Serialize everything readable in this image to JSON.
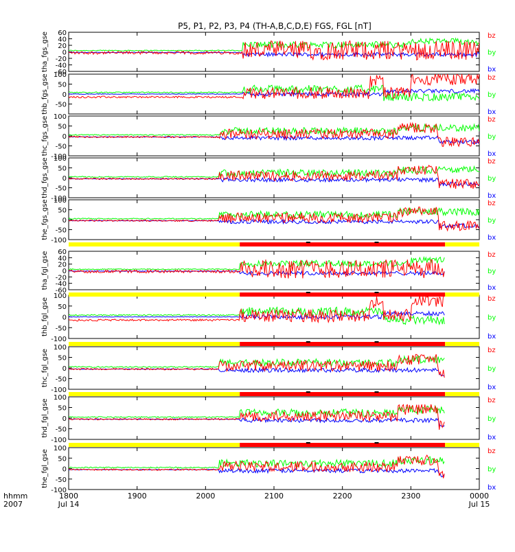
{
  "title": "P5, P1, P2, P3, P4 (TH-A,B,C,D,E) FGS, FGL [nT]",
  "xaxis": {
    "row_labels": [
      "hhmm",
      "2007"
    ],
    "ticks": [
      "1800",
      "1900",
      "2000",
      "2100",
      "2200",
      "2300",
      "0000"
    ],
    "date_labels": [
      "Jul 14",
      "Jul 15"
    ],
    "range": [
      1800,
      2400
    ]
  },
  "colors": {
    "bx": "#0000ff",
    "by": "#00ff00",
    "bz": "#ff0000",
    "mode_fast": "#ff0000",
    "mode_slow": "#ffff00"
  },
  "chart_data": [
    {
      "type": "line",
      "ylabel": "tha_fgs_gse",
      "ylim": [
        -60,
        60
      ],
      "yticks": [
        "60",
        "40",
        "20",
        "0",
        "-20",
        "-40",
        "-60"
      ],
      "series": [
        {
          "name": "bz"
        },
        {
          "name": "by"
        },
        {
          "name": "bx"
        }
      ]
    },
    {
      "type": "line",
      "ylabel": "thb_fgs_gse",
      "ylim": [
        -100,
        100
      ],
      "yticks": [
        "100",
        "50",
        "0",
        "-50"
      ],
      "series": [
        {
          "name": "bz"
        },
        {
          "name": "by"
        },
        {
          "name": "bx"
        }
      ]
    },
    {
      "type": "line",
      "ylabel": "thc_fgs_gse",
      "ylim": [
        -100,
        100
      ],
      "yticks": [
        "100",
        "50",
        "0",
        "-50",
        "-100"
      ],
      "series": [
        {
          "name": "bz"
        },
        {
          "name": "by"
        },
        {
          "name": "bx"
        }
      ]
    },
    {
      "type": "line",
      "ylabel": "thd_fgs_gse",
      "ylim": [
        -100,
        100
      ],
      "yticks": [
        "100",
        "50",
        "0",
        "-50",
        "-100"
      ],
      "series": [
        {
          "name": "bz"
        },
        {
          "name": "by"
        },
        {
          "name": "bx"
        }
      ]
    },
    {
      "type": "line",
      "ylabel": "the_fgs_gse",
      "ylim": [
        -100,
        100
      ],
      "yticks": [
        "100",
        "50",
        "0",
        "-50",
        "-100"
      ],
      "series": [
        {
          "name": "bz"
        },
        {
          "name": "by"
        },
        {
          "name": "bx"
        }
      ]
    },
    {
      "type": "line",
      "ylabel": "tha_fgl_gse",
      "ylim": [
        -60,
        60
      ],
      "yticks": [
        "60",
        "40",
        "20",
        "0",
        "-20",
        "-40",
        "-60"
      ],
      "series": [
        {
          "name": "bz"
        },
        {
          "name": "by"
        },
        {
          "name": "bx"
        }
      ]
    },
    {
      "type": "line",
      "ylabel": "thb_fgl_gse",
      "ylim": [
        -100,
        100
      ],
      "yticks": [
        "100",
        "50",
        "0",
        "-50",
        "-100"
      ],
      "series": [
        {
          "name": "bz"
        },
        {
          "name": "by"
        },
        {
          "name": "bx"
        }
      ]
    },
    {
      "type": "line",
      "ylabel": "thc_fgl_gse",
      "ylim": [
        -100,
        100
      ],
      "yticks": [
        "100",
        "50",
        "0",
        "-50",
        "-100"
      ],
      "series": [
        {
          "name": "bz"
        },
        {
          "name": "by"
        },
        {
          "name": "bx"
        }
      ]
    },
    {
      "type": "line",
      "ylabel": "thd_fgl_gse",
      "ylim": [
        -100,
        100
      ],
      "yticks": [
        "100",
        "50",
        "0",
        "-50",
        "-100"
      ],
      "series": [
        {
          "name": "bz"
        },
        {
          "name": "by"
        },
        {
          "name": "bx"
        }
      ]
    },
    {
      "type": "line",
      "ylabel": "the_fgl_gse",
      "ylim": [
        -100,
        100
      ],
      "yticks": [
        "100",
        "50",
        "0",
        "-50",
        "-100"
      ],
      "series": [
        {
          "name": "bz"
        },
        {
          "name": "by"
        },
        {
          "name": "bx"
        }
      ]
    }
  ],
  "mode_bars": [
    {
      "segments": [
        {
          "from": 1800,
          "to": 2050,
          "mode": "slow"
        },
        {
          "from": 2050,
          "to": 2350,
          "mode": "fast"
        },
        {
          "from": 2350,
          "to": 2400,
          "mode": "slow"
        }
      ]
    },
    {
      "segments": [
        {
          "from": 1800,
          "to": 2050,
          "mode": "slow"
        },
        {
          "from": 2050,
          "to": 2350,
          "mode": "fast"
        },
        {
          "from": 2350,
          "to": 2400,
          "mode": "slow"
        }
      ]
    },
    {
      "segments": [
        {
          "from": 1800,
          "to": 2050,
          "mode": "slow"
        },
        {
          "from": 2050,
          "to": 2350,
          "mode": "fast"
        },
        {
          "from": 2350,
          "to": 2400,
          "mode": "slow"
        }
      ]
    },
    {
      "segments": [
        {
          "from": 1800,
          "to": 2050,
          "mode": "slow"
        },
        {
          "from": 2050,
          "to": 2350,
          "mode": "fast"
        },
        {
          "from": 2350,
          "to": 2400,
          "mode": "slow"
        }
      ]
    },
    {
      "segments": [
        {
          "from": 1800,
          "to": 2050,
          "mode": "slow"
        },
        {
          "from": 2050,
          "to": 2350,
          "mode": "fast"
        },
        {
          "from": 2350,
          "to": 2400,
          "mode": "slow"
        }
      ]
    }
  ]
}
